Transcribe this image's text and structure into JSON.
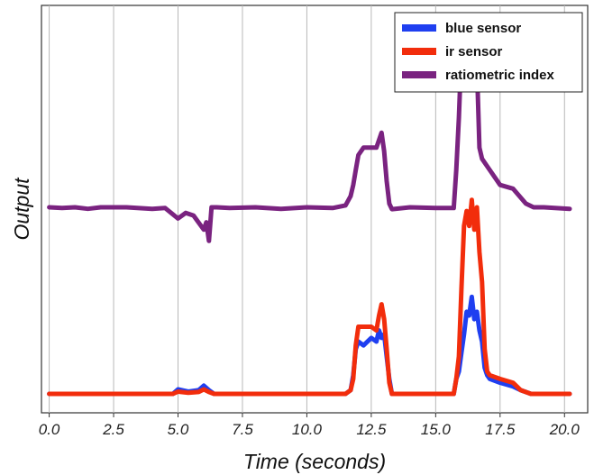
{
  "chart_data": {
    "type": "line",
    "title": "",
    "xlabel": "Time (seconds)",
    "ylabel": "Output",
    "xlim": [
      -0.3,
      20.9
    ],
    "ylim": [
      0,
      100
    ],
    "x_ticks": [
      "0.0",
      "2.5",
      "5.0",
      "7.5",
      "10.0",
      "12.5",
      "15.0",
      "17.5",
      "20.0"
    ],
    "x_tick_values": [
      0,
      2.5,
      5,
      7.5,
      10,
      12.5,
      15,
      17.5,
      20
    ],
    "y_ticks_shown": false,
    "grid": "vertical",
    "legend_position": "top-right",
    "series": [
      {
        "name": "blue sensor",
        "color": "#1f3ff0",
        "x": [
          0,
          4.8,
          5.0,
          5.4,
          5.8,
          6.0,
          6.2,
          6.4,
          11.5,
          11.7,
          11.8,
          11.9,
          12.0,
          12.2,
          12.5,
          12.7,
          12.8,
          12.9,
          13.0,
          13.1,
          13.2,
          13.3,
          15.7,
          15.8,
          15.9,
          16.0,
          16.1,
          16.2,
          16.3,
          16.4,
          16.5,
          16.6,
          16.7,
          16.8,
          16.9,
          17.0,
          17.1,
          17.5,
          18.0,
          18.3,
          18.7,
          20.2
        ],
        "y": [
          0,
          0,
          1.2,
          0.6,
          1.0,
          2.2,
          1.0,
          0,
          0,
          1,
          5,
          12,
          14,
          13,
          15,
          14,
          17,
          15,
          16,
          10,
          4,
          0,
          0,
          4,
          6,
          11,
          16,
          22,
          21,
          26,
          20,
          22,
          17,
          14,
          7,
          5,
          4,
          3,
          2,
          1,
          0,
          0
        ]
      },
      {
        "name": "ir sensor",
        "color": "#f22d0c",
        "x": [
          0,
          4.8,
          5.0,
          5.4,
          5.8,
          6.0,
          6.2,
          6.4,
          11.5,
          11.7,
          11.8,
          11.9,
          12.0,
          12.2,
          12.5,
          12.7,
          12.8,
          12.9,
          13.0,
          13.1,
          13.2,
          13.3,
          15.7,
          15.8,
          15.9,
          16.0,
          16.1,
          16.2,
          16.3,
          16.4,
          16.5,
          16.6,
          16.7,
          16.8,
          16.9,
          17.0,
          17.1,
          17.5,
          18.0,
          18.3,
          18.7,
          20.2
        ],
        "y": [
          0,
          0,
          0.6,
          0.3,
          0.5,
          1.2,
          0.5,
          0,
          0,
          1,
          4,
          13,
          18,
          18,
          18,
          17,
          21,
          24,
          20,
          12,
          3,
          0,
          0,
          4,
          10,
          28,
          45,
          49,
          45,
          52,
          44,
          50,
          38,
          30,
          12,
          6,
          5,
          4,
          3,
          1,
          0,
          0
        ]
      },
      {
        "name": "ratiometric index",
        "color": "#7a2380",
        "x": [
          0,
          0.5,
          1.0,
          1.5,
          2.0,
          3.0,
          4.0,
          4.5,
          5.0,
          5.3,
          5.6,
          6.0,
          6.1,
          6.2,
          6.3,
          6.5,
          7.0,
          8.0,
          9.0,
          10.0,
          11.0,
          11.5,
          11.7,
          11.8,
          11.9,
          12.0,
          12.2,
          12.5,
          12.7,
          12.9,
          13.0,
          13.1,
          13.2,
          13.3,
          14.0,
          15.0,
          15.7,
          15.8,
          15.9,
          16.0,
          16.1,
          16.2,
          16.3,
          16.4,
          16.5,
          16.6,
          16.7,
          16.8,
          17.0,
          17.5,
          18.0,
          18.5,
          18.8,
          19.2,
          20.2
        ],
        "y": [
          50,
          49.8,
          50,
          49.6,
          50,
          50,
          49.6,
          49.8,
          47,
          48.5,
          47.8,
          44,
          46,
          41,
          50,
          50,
          49.8,
          50,
          49.6,
          50,
          49.8,
          50.5,
          53,
          56,
          60,
          64,
          66,
          66,
          66,
          70,
          65,
          57,
          51,
          49.5,
          50,
          49.8,
          49.8,
          60,
          74,
          92,
          95,
          88,
          84,
          95,
          90,
          88,
          66,
          63,
          61,
          56,
          55,
          51,
          50,
          50,
          49.6
        ]
      }
    ]
  }
}
